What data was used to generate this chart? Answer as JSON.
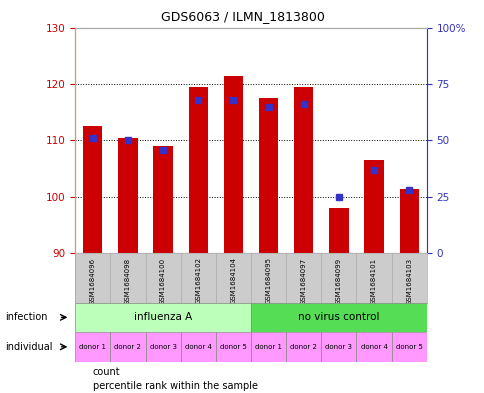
{
  "title": "GDS6063 / ILMN_1813800",
  "samples": [
    "GSM1684096",
    "GSM1684098",
    "GSM1684100",
    "GSM1684102",
    "GSM1684104",
    "GSM1684095",
    "GSM1684097",
    "GSM1684099",
    "GSM1684101",
    "GSM1684103"
  ],
  "counts": [
    112.5,
    110.5,
    109.0,
    119.5,
    121.5,
    117.5,
    119.5,
    98.0,
    106.5,
    101.5
  ],
  "percentiles": [
    51,
    50,
    46,
    68,
    68,
    65,
    66,
    25,
    37,
    28
  ],
  "ylim_left": [
    90,
    130
  ],
  "ylim_right": [
    0,
    100
  ],
  "yticks_left": [
    90,
    100,
    110,
    120,
    130
  ],
  "yticks_right": [
    0,
    25,
    50,
    75,
    100
  ],
  "ytick_right_labels": [
    "0",
    "25",
    "50",
    "75",
    "100%"
  ],
  "bar_color": "#cc0000",
  "marker_color": "#3333cc",
  "bar_bottom": 90,
  "infection_groups": [
    {
      "label": "influenza A",
      "start": 0,
      "end": 5,
      "color": "#bbffbb"
    },
    {
      "label": "no virus control",
      "start": 5,
      "end": 10,
      "color": "#55dd55"
    }
  ],
  "individual_labels": [
    "donor 1",
    "donor 2",
    "donor 3",
    "donor 4",
    "donor 5",
    "donor 1",
    "donor 2",
    "donor 3",
    "donor 4",
    "donor 5"
  ],
  "individual_color": "#ff99ff",
  "legend_count_label": "count",
  "legend_pct_label": "percentile rank within the sample",
  "bar_width": 0.55,
  "bg_color": "#ffffff",
  "ax_bg_color": "#ffffff",
  "header_bg_color": "#cccccc",
  "right_axis_color": "#3333bb",
  "left_axis_color": "#cc0000"
}
